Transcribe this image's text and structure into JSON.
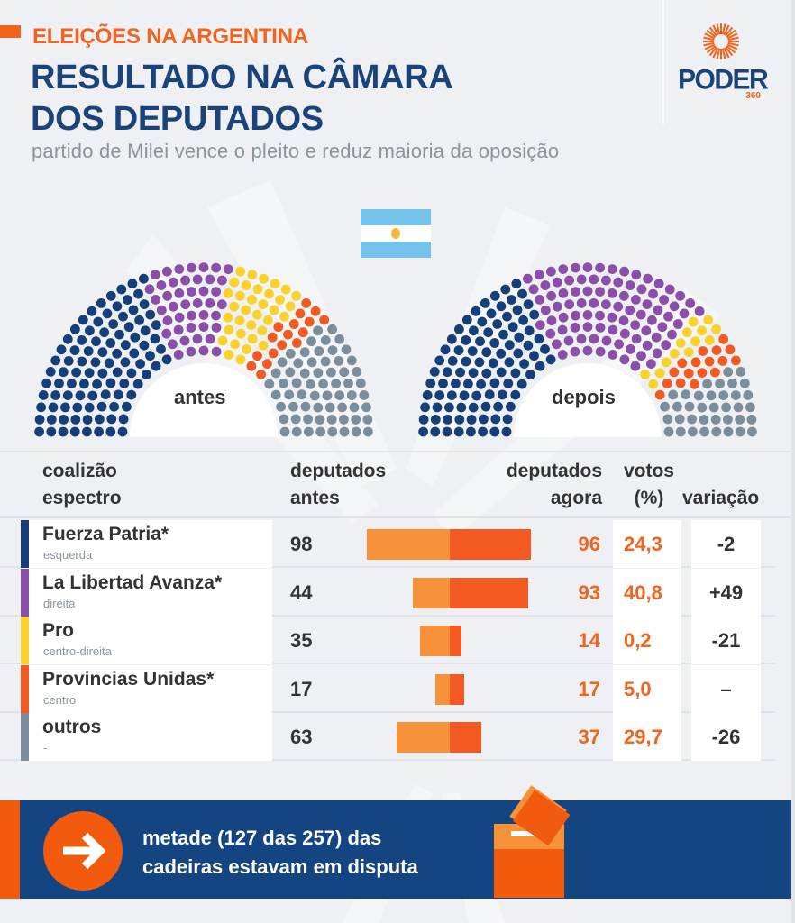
{
  "header": {
    "kicker": "ELEIÇÕES NA ARGENTINA",
    "title_line1": "RESULTADO NA CÂMARA",
    "title_line2": "DOS DEPUTADOS",
    "subtitle": "partido de Milei vence o pleito e reduz maioria da oposição"
  },
  "logo": {
    "word": "PODER",
    "number": "360"
  },
  "flag": {
    "icon": "argentina-flag-icon"
  },
  "colors": {
    "title_blue": "#1a4479",
    "accent_orange": "#f2631d",
    "bar_before": "#f7923a",
    "bar_after": "#f25a22",
    "banner_blue": "#154580"
  },
  "table": {
    "headers": {
      "coalition_line1": "coalizão",
      "coalition_line2": "espectro",
      "before_line1": "deputados",
      "before_line2": "antes",
      "after_line1": "deputados",
      "after_line2": "agora",
      "votes_line1": "votos",
      "votes_line2": "(%)",
      "variation": "variação"
    }
  },
  "banner": {
    "line1": "metade (127 das 257) das",
    "line2": "cadeiras estavam em disputa",
    "icon": "arrow-right-icon",
    "illustration": "ballot-box-icon"
  },
  "chart_data": [
    {
      "type": "hemicycle",
      "title": "antes",
      "total_seats": 257,
      "series": [
        {
          "name": "Fuerza Patria*",
          "value": 98,
          "color": "#163f7a"
        },
        {
          "name": "La Libertad Avanza*",
          "value": 44,
          "color": "#8a4fa8"
        },
        {
          "name": "Pro",
          "value": 35,
          "color": "#fbd22b"
        },
        {
          "name": "Provincias Unidas*",
          "value": 17,
          "color": "#f25a22"
        },
        {
          "name": "outros",
          "value": 63,
          "color": "#7c8e9b"
        }
      ]
    },
    {
      "type": "hemicycle",
      "title": "depois",
      "total_seats": 257,
      "series": [
        {
          "name": "Fuerza Patria*",
          "value": 96,
          "color": "#163f7a"
        },
        {
          "name": "La Libertad Avanza*",
          "value": 93,
          "color": "#8a4fa8"
        },
        {
          "name": "Pro",
          "value": 14,
          "color": "#fbd22b"
        },
        {
          "name": "Provincias Unidas*",
          "value": 17,
          "color": "#f25a22"
        },
        {
          "name": "outros",
          "value": 37,
          "color": "#7c8e9b"
        }
      ]
    },
    {
      "type": "table",
      "title": "",
      "columns": [
        "coalizão / espectro",
        "deputados antes",
        "deputados agora",
        "votos (%)",
        "variação"
      ],
      "bar_legend": {
        "left": "deputados antes",
        "right": "deputados agora"
      },
      "rows": [
        {
          "name": "Fuerza Patria*",
          "spectrum": "esquerda",
          "color": "#163f7a",
          "before": 98,
          "after": 96,
          "votes": "24,3",
          "variation": "-2"
        },
        {
          "name": "La Libertad Avanza*",
          "spectrum": "direita",
          "color": "#8a4fa8",
          "before": 44,
          "after": 93,
          "votes": "40,8",
          "variation": "+49"
        },
        {
          "name": "Pro",
          "spectrum": "centro-direita",
          "color": "#fbd22b",
          "before": 35,
          "after": 14,
          "votes": "0,2",
          "variation": "-21"
        },
        {
          "name": "Provincias Unidas*",
          "spectrum": "centro",
          "color": "#f25a22",
          "before": 17,
          "after": 17,
          "votes": "5,0",
          "variation": "–"
        },
        {
          "name": "outros",
          "spectrum": "-",
          "color": "#7c8e9b",
          "before": 63,
          "after": 37,
          "votes": "29,7",
          "variation": "-26"
        }
      ]
    }
  ]
}
